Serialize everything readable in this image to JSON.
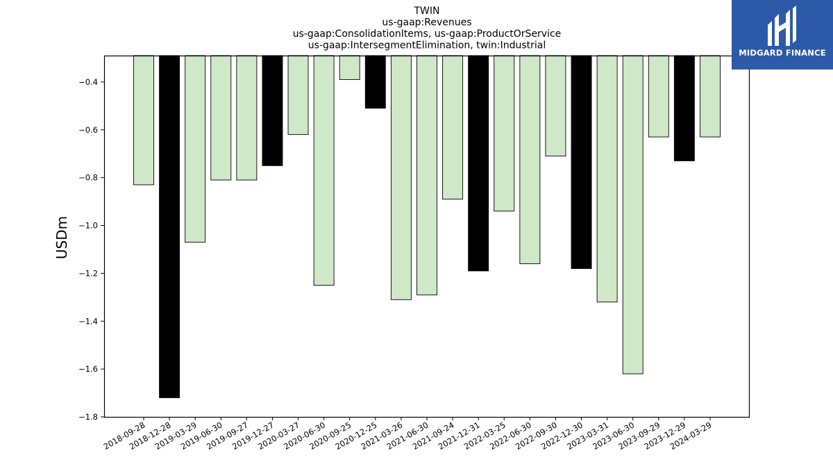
{
  "chart_data": {
    "type": "bar",
    "title_lines": [
      "TWIN",
      "us-gaap:Revenues",
      "us-gaap:ConsolidationItems, us-gaap:ProductOrService",
      "us-gaap:IntersegmentElimination, twin:Industrial"
    ],
    "ylabel": "USDm",
    "ylim": [
      -1.8,
      -0.29
    ],
    "yticks": [
      -0.4,
      -0.6,
      -0.8,
      -1.0,
      -1.2,
      -1.4,
      -1.6,
      -1.8
    ],
    "ytick_labels": [
      "−0.4",
      "−0.6",
      "−0.8",
      "−1.0",
      "−1.2",
      "−1.4",
      "−1.6",
      "−1.8"
    ],
    "grid": false,
    "categories": [
      "2018-09-28",
      "2018-12-28",
      "2019-03-29",
      "2019-06-30",
      "2019-09-27",
      "2019-12-27",
      "2020-03-27",
      "2020-06-30",
      "2020-09-25",
      "2020-12-25",
      "2021-03-26",
      "2021-06-30",
      "2021-09-24",
      "2021-12-31",
      "2022-03-25",
      "2022-06-30",
      "2022-09-30",
      "2022-12-30",
      "2023-03-31",
      "2023-06-30",
      "2023-09-29",
      "2023-12-29",
      "2024-03-29"
    ],
    "values": [
      -0.83,
      -1.72,
      -1.07,
      -0.81,
      -0.81,
      -0.75,
      -0.62,
      -1.25,
      -0.39,
      -0.51,
      -1.31,
      -1.29,
      -0.89,
      -1.19,
      -0.94,
      -1.16,
      -0.71,
      -1.18,
      -1.32,
      -1.62,
      -0.63,
      -0.73,
      -0.63
    ],
    "highlight": [
      false,
      true,
      false,
      false,
      false,
      true,
      false,
      false,
      false,
      true,
      false,
      false,
      false,
      true,
      false,
      false,
      false,
      true,
      false,
      false,
      false,
      true,
      false
    ],
    "colors": {
      "bar": "#cfe8c8",
      "highlight_bar": "#000000",
      "edge": "#000000"
    }
  },
  "logo": {
    "text": "MIDGARD FINANCE",
    "background": "#2d5aa8",
    "icon": "midgard-logo-icon"
  }
}
